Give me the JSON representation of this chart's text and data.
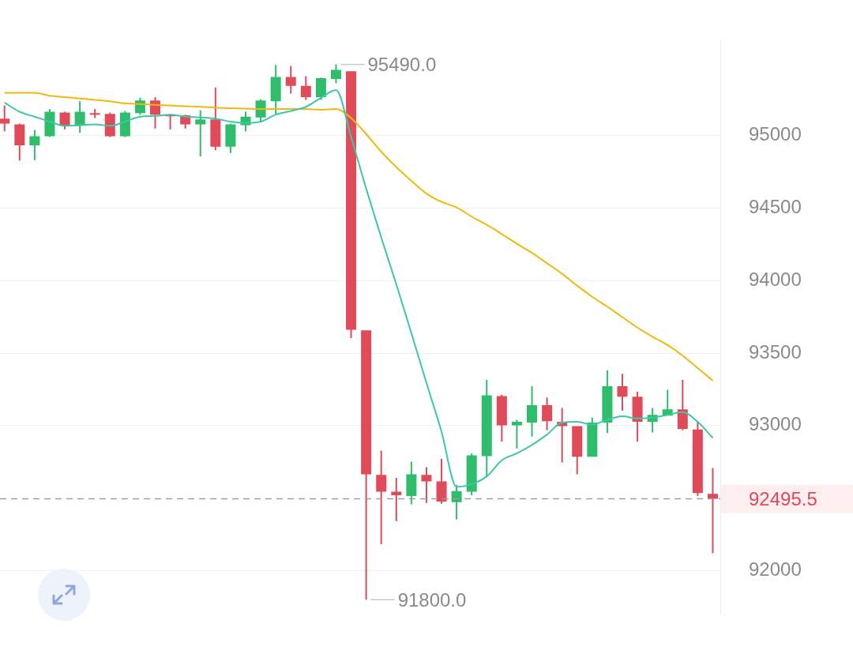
{
  "chart_data": {
    "type": "candlestick",
    "categories": [
      null,
      null,
      null,
      null,
      null,
      null,
      null,
      null,
      null,
      null,
      null,
      null,
      null,
      null,
      null,
      null,
      null,
      null,
      null,
      null,
      null,
      null,
      null,
      null,
      null,
      null,
      null,
      null,
      null,
      null,
      null,
      null,
      null,
      null,
      null,
      null,
      null,
      null,
      null,
      null,
      null,
      null,
      null,
      null,
      null,
      null,
      null,
      null
    ],
    "ohlc": [
      [
        95116,
        95207,
        95029,
        95082
      ],
      [
        95077,
        95082,
        94827,
        94933
      ],
      [
        94933,
        95039,
        94831,
        94995
      ],
      [
        94995,
        95183,
        94990,
        95164
      ],
      [
        95159,
        95164,
        95043,
        95067
      ],
      [
        95067,
        95236,
        95019,
        95164
      ],
      [
        95154,
        95183,
        95120,
        95144
      ],
      [
        95149,
        95159,
        94990,
        94995
      ],
      [
        94995,
        95169,
        94990,
        95159
      ],
      [
        95154,
        95260,
        95144,
        95241
      ],
      [
        95241,
        95265,
        95048,
        95144
      ],
      [
        95144,
        95149,
        95043,
        95140
      ],
      [
        95140,
        95144,
        95048,
        95077
      ],
      [
        95077,
        95173,
        94856,
        95111
      ],
      [
        95111,
        95332,
        94899,
        94923
      ],
      [
        94923,
        95082,
        94880,
        95077
      ],
      [
        95072,
        95164,
        95029,
        95130
      ],
      [
        95125,
        95250,
        95091,
        95241
      ],
      [
        95236,
        95486,
        95144,
        95404
      ],
      [
        95404,
        95480,
        95289,
        95342
      ],
      [
        95342,
        95409,
        95246,
        95265
      ],
      [
        95265,
        95400,
        95246,
        95395
      ],
      [
        95390,
        95490,
        95361,
        95453
      ],
      [
        95443,
        95443,
        93604,
        93661
      ],
      [
        93657,
        93657,
        91800,
        92665
      ],
      [
        92660,
        92828,
        92183,
        92544
      ],
      [
        92544,
        92640,
        92342,
        92520
      ],
      [
        92515,
        92751,
        92457,
        92665
      ],
      [
        92660,
        92713,
        92467,
        92616
      ],
      [
        92616,
        92770,
        92462,
        92477
      ],
      [
        92472,
        92592,
        92352,
        92549
      ],
      [
        92544,
        92809,
        92520,
        92795
      ],
      [
        92790,
        93315,
        92645,
        93209
      ],
      [
        93204,
        93213,
        92891,
        93002
      ],
      [
        93002,
        93040,
        92843,
        93026
      ],
      [
        93021,
        93271,
        92925,
        93141
      ],
      [
        93141,
        93194,
        92968,
        93031
      ],
      [
        93026,
        93122,
        92746,
        92997
      ],
      [
        92997,
        92997,
        92665,
        92785
      ],
      [
        92785,
        93055,
        92785,
        93021
      ],
      [
        93021,
        93382,
        92949,
        93271
      ],
      [
        93271,
        93358,
        93103,
        93199
      ],
      [
        93199,
        93233,
        92891,
        93026
      ],
      [
        93026,
        93122,
        92953,
        93074
      ],
      [
        93069,
        93247,
        93069,
        93112
      ],
      [
        93112,
        93315,
        92968,
        92978
      ],
      [
        92973,
        93026,
        92515,
        92535
      ],
      [
        92530,
        92708,
        92120,
        92495.5
      ]
    ],
    "colors": [
      "#e04a59",
      "#e04a59",
      "#2ebd6b",
      "#2ebd6b",
      "#e04a59",
      "#2ebd6b",
      "#e04a59",
      "#e04a59",
      "#2ebd6b",
      "#2ebd6b",
      "#e04a59",
      "#e04a59",
      "#e04a59",
      "#2ebd6b",
      "#e04a59",
      "#2ebd6b",
      "#2ebd6b",
      "#2ebd6b",
      "#2ebd6b",
      "#e04a59",
      "#e04a59",
      "#2ebd6b",
      "#2ebd6b",
      "#e04a59",
      "#e04a59",
      "#e04a59",
      "#e04a59",
      "#2ebd6b",
      "#e04a59",
      "#e04a59",
      "#2ebd6b",
      "#2ebd6b",
      "#2ebd6b",
      "#e04a59",
      "#2ebd6b",
      "#2ebd6b",
      "#e04a59",
      "#e04a59",
      "#e04a59",
      "#2ebd6b",
      "#2ebd6b",
      "#e04a59",
      "#e04a59",
      "#2ebd6b",
      "#2ebd6b",
      "#e04a59",
      "#e04a59",
      "#e04a59"
    ],
    "series": [
      {
        "type": "line",
        "color": "#3cc8a8",
        "values": [
          95227,
          95164,
          95130,
          95096,
          95067,
          95072,
          95077,
          95067,
          95096,
          95130,
          95135,
          95144,
          95130,
          95125,
          95116,
          95096,
          95087,
          95096,
          95144,
          95169,
          95198,
          95260,
          95313,
          94990,
          94634,
          94297,
          93974,
          93637,
          93295,
          92958,
          92578,
          92597,
          92650,
          92761,
          92809,
          92867,
          92939,
          93021,
          93026,
          93007,
          93040,
          93064,
          93050,
          93055,
          93074,
          93093,
          93026,
          92915
        ]
      },
      {
        "type": "line",
        "color": "#f0b90b",
        "values": [
          95294,
          95294,
          95294,
          95274,
          95265,
          95255,
          95246,
          95236,
          95222,
          95217,
          95212,
          95207,
          95202,
          95198,
          95193,
          95188,
          95186,
          95183,
          95183,
          95183,
          95183,
          95178,
          95183,
          95120,
          95010,
          94889,
          94783,
          94687,
          94600,
          94543,
          94504,
          94441,
          94384,
          94321,
          94254,
          94191,
          94119,
          94047,
          93965,
          93888,
          93820,
          93748,
          93676,
          93613,
          93555,
          93483,
          93397,
          93310
        ]
      }
    ],
    "ylim": [
      91700,
      95660
    ],
    "yticks": [
      92000,
      93000,
      93500,
      94000,
      94500,
      95000
    ],
    "grid": "y",
    "legend": false,
    "marker": "none",
    "ref_lines": [
      {
        "axis": "y",
        "value": 92495.5,
        "label": "92495.5",
        "color": "#9e9e9e",
        "line_style": "dashed"
      }
    ],
    "annotations": [
      "95490.0",
      "91800.0"
    ]
  }
}
